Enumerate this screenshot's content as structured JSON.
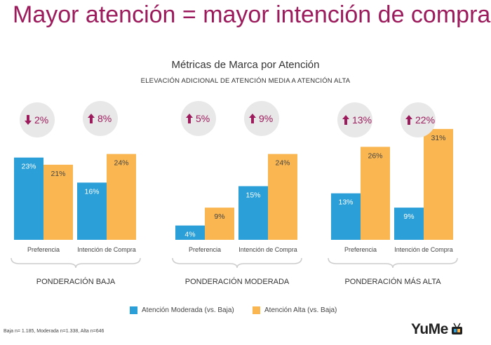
{
  "headline": "Mayor atención = mayor intención de compra",
  "colors": {
    "moderada": "#2a9fd8",
    "alta": "#f9b651",
    "arrow": "#9b1b5c",
    "circle": "#e8e8e8"
  },
  "legend": [
    {
      "label": "Atención Moderada (vs. Baja)",
      "color": "#2a9fd8"
    },
    {
      "label": "Atención Alta (vs. Baja)",
      "color": "#f9b651"
    }
  ],
  "footnote": "Baja n= 1.185, Moderada n=1.338, Alta n=646",
  "logo": {
    "text": "YuMe"
  },
  "chart_data": {
    "type": "bar",
    "title": "Métricas de Marca por Atención",
    "subtitle": "ELEVACIÓN ADICIONAL DE ATENCIÓN MEDIA A ATENCIÓN ALTA",
    "ylim": [
      0,
      35
    ],
    "series": [
      {
        "name": "Atención Moderada (vs. Baja)",
        "key": "moderada"
      },
      {
        "name": "Atención Alta (vs. Baja)",
        "key": "alta"
      }
    ],
    "groups": [
      {
        "label": "PONDERACIÓN BAJA",
        "metrics": [
          {
            "category": "Preferencia",
            "moderada": 23,
            "alta": 21,
            "lift": "2%",
            "direction": "down"
          },
          {
            "category": "Intención de Compra",
            "moderada": 16,
            "alta": 24,
            "lift": "8%",
            "direction": "up"
          }
        ]
      },
      {
        "label": "PONDERACIÓN MODERADA",
        "metrics": [
          {
            "category": "Preferencia",
            "moderada": 4,
            "alta": 9,
            "lift": "5%",
            "direction": "up"
          },
          {
            "category": "Intención de Compra",
            "moderada": 15,
            "alta": 24,
            "lift": "9%",
            "direction": "up"
          }
        ]
      },
      {
        "label": "PONDERACIÓN MÁS ALTA",
        "metrics": [
          {
            "category": "Preferencia",
            "moderada": 13,
            "alta": 26,
            "lift": "13%",
            "direction": "up"
          },
          {
            "category": "Intención de Compra",
            "moderada": 9,
            "alta": 31,
            "lift": "22%",
            "direction": "up"
          }
        ]
      }
    ]
  }
}
